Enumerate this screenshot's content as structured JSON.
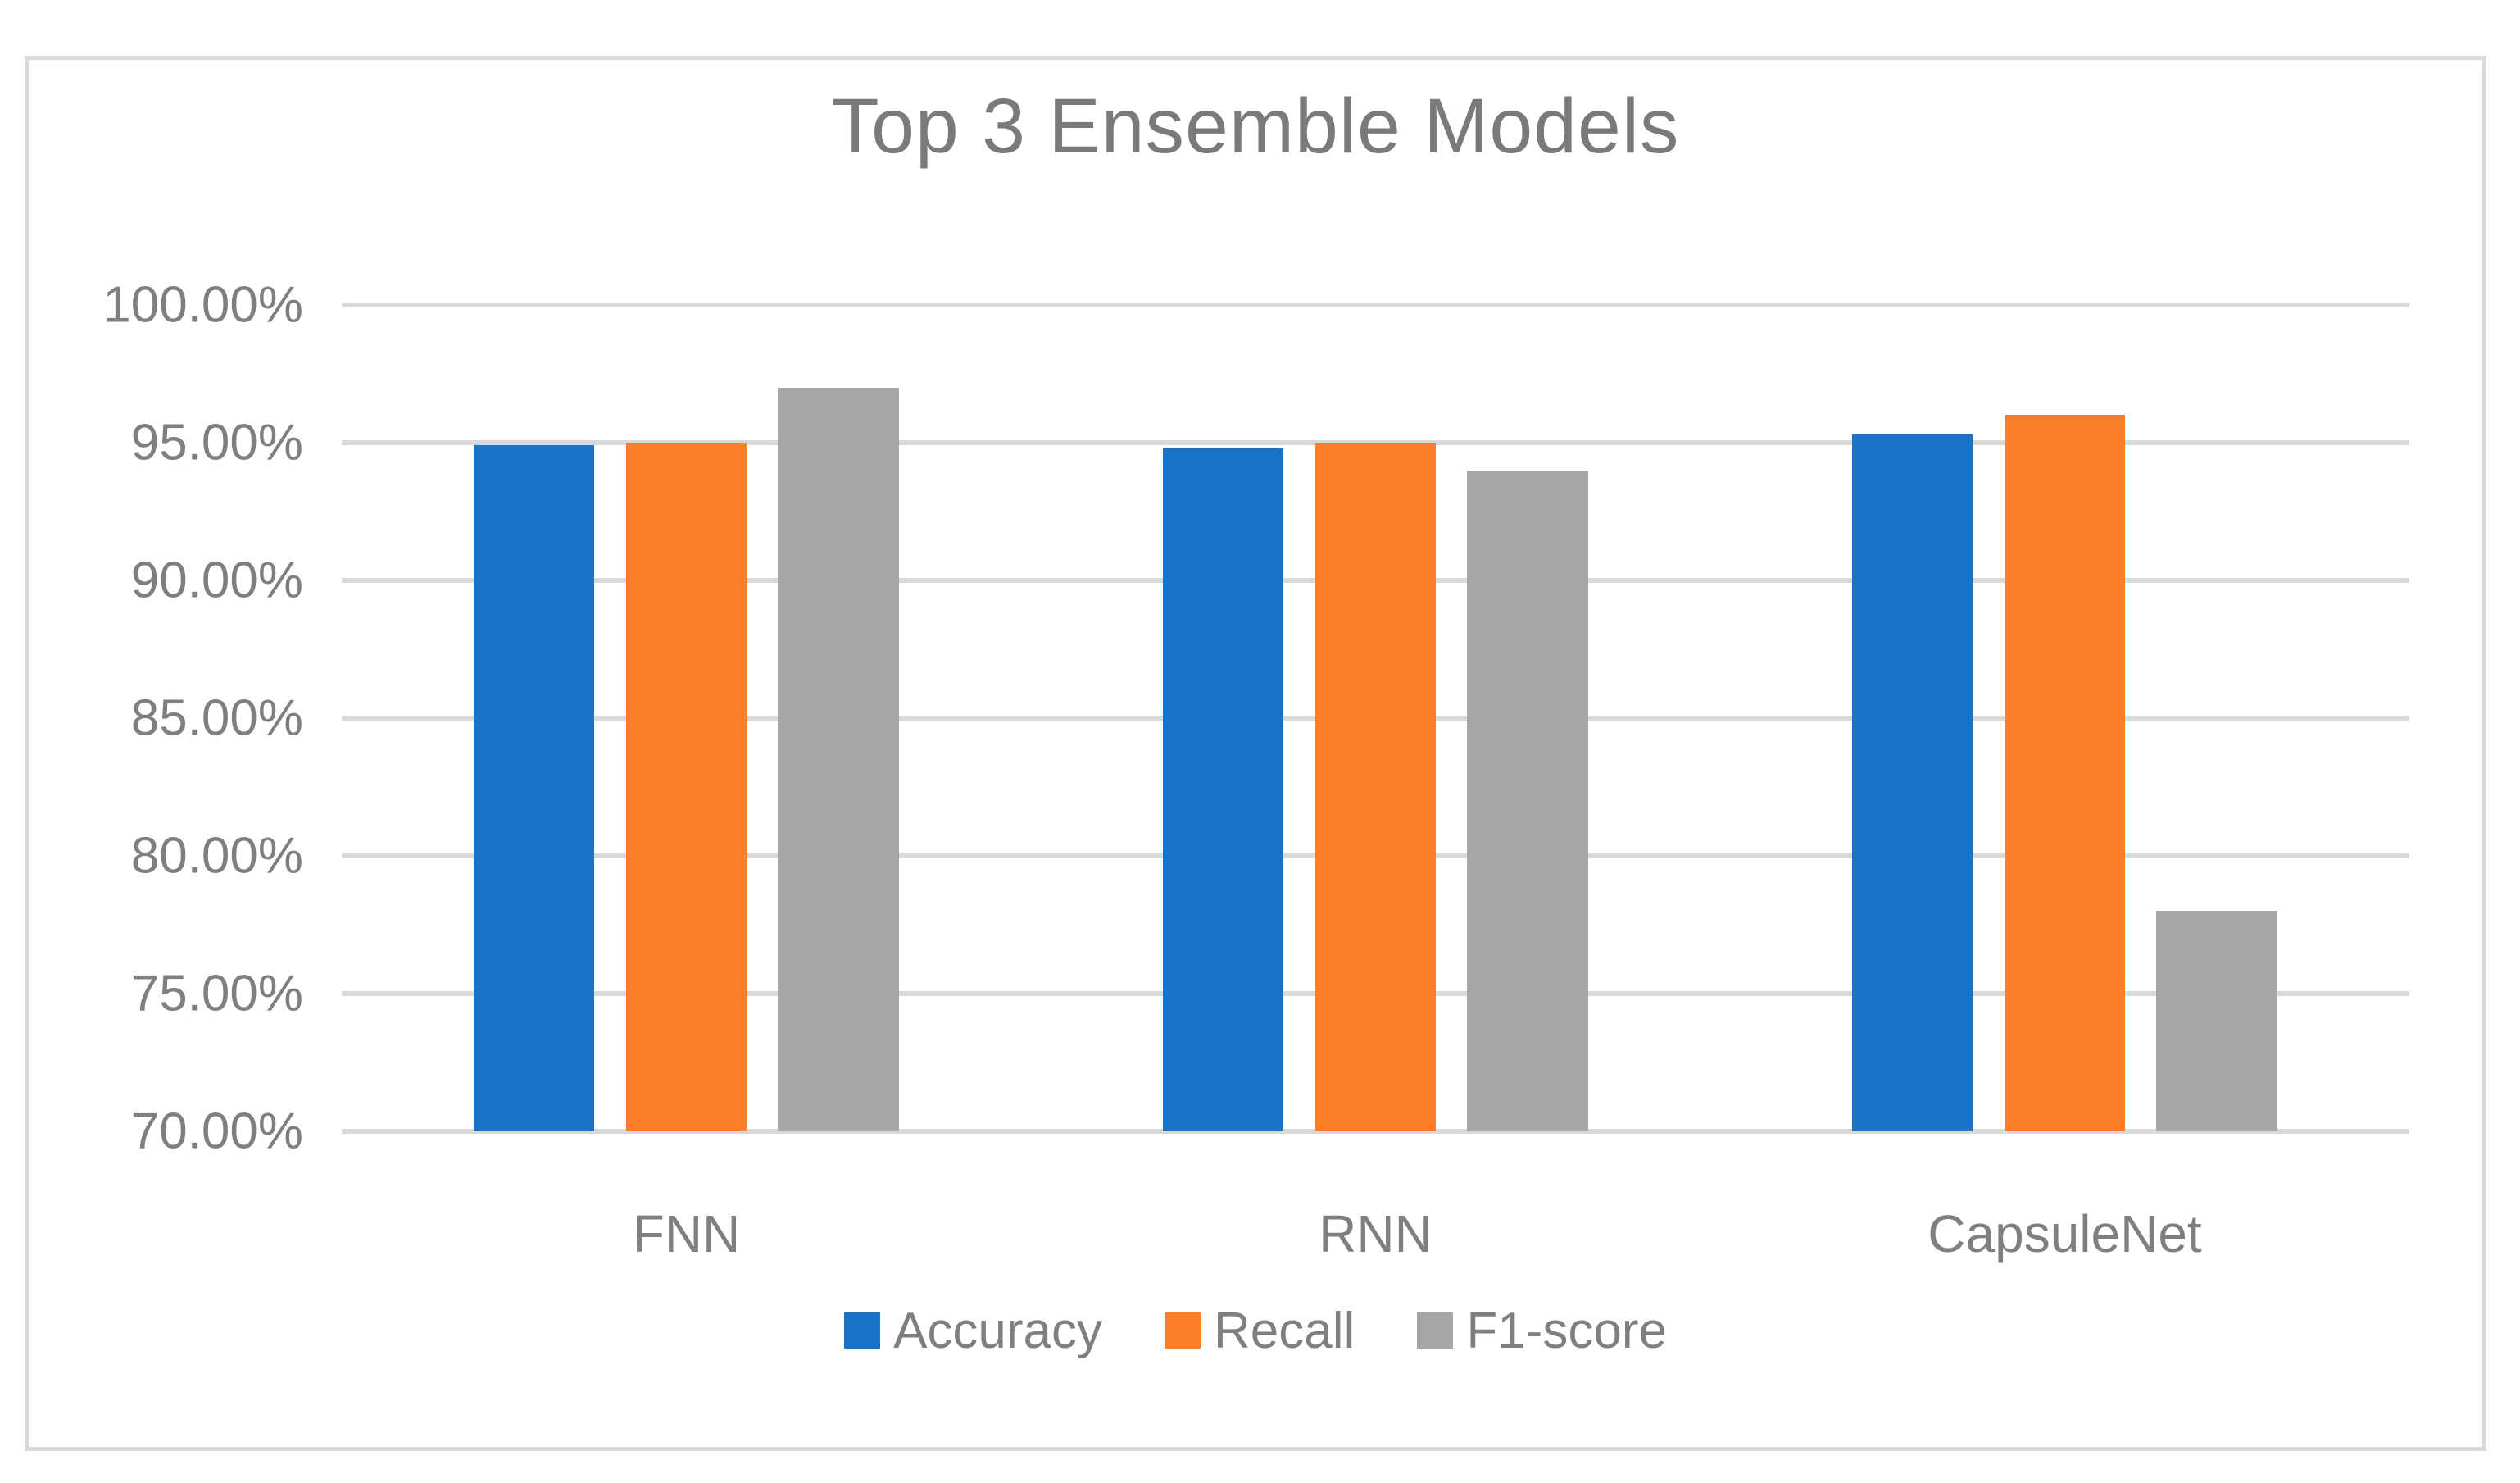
{
  "chart_data": {
    "type": "bar",
    "title": "Top 3 Ensemble Models",
    "categories": [
      "FNN",
      "RNN",
      "CapsuleNet"
    ],
    "series": [
      {
        "name": "Accuracy",
        "color": "#1B73C7",
        "values": [
          94.9,
          94.8,
          95.3
        ]
      },
      {
        "name": "Recall",
        "color": "#FD7E28",
        "values": [
          95.0,
          95.0,
          96.0
        ]
      },
      {
        "name": "F1-score",
        "color": "#A6A6A6",
        "values": [
          97.0,
          94.0,
          78.0
        ]
      }
    ],
    "ylim": [
      70,
      100
    ],
    "ytick_step": 5,
    "ytick_labels": [
      "100.00%",
      "95.00%",
      "90.00%",
      "85.00%",
      "80.00%",
      "75.00%",
      "70.00%"
    ],
    "xlabel": "",
    "ylabel": "",
    "grid": true,
    "legend_position": "bottom"
  },
  "theme": {
    "background": "#FFFFFF",
    "border_color": "#D9D9D9",
    "grid_color": "#D9D9D9",
    "text_color": "#7F7F7F",
    "title_color": "#7A7A7A"
  }
}
